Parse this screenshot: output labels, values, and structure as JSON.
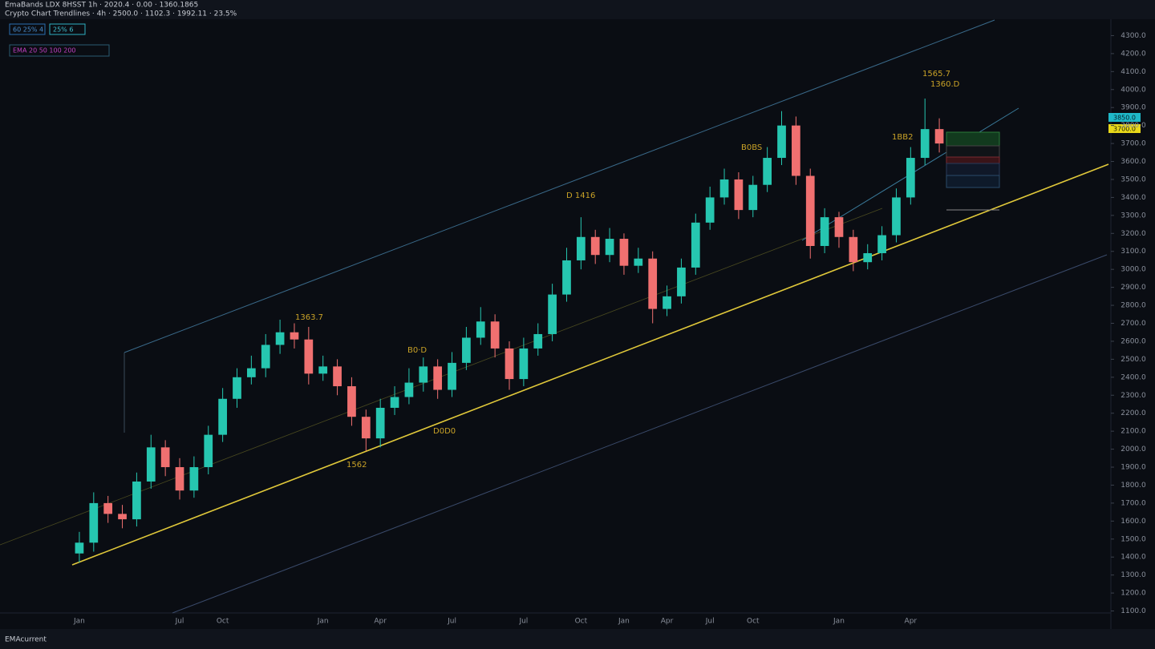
{
  "header": {
    "line1": "EmaBands LDX 8HSST 1h · 2020.4 · 0.00 · 1360.1865",
    "line2": "Crypto Chart Trendlines · 4h · 2500.0 · 1102.3 · 1992.11 · 23.5%",
    "indicator1": "60 25% 4",
    "indicator2": "25% 6",
    "indicator3": "EMA 20 50 100 200"
  },
  "footer": "EMAcurrent",
  "chart_data": {
    "type": "candlestick",
    "categories": [
      "Jan",
      null,
      null,
      null,
      null,
      null,
      null,
      "Jul",
      null,
      null,
      "Oct",
      null,
      null,
      null,
      null,
      null,
      null,
      "Jan",
      null,
      null,
      null,
      "Apr",
      null,
      null,
      null,
      null,
      "Jul",
      null,
      null,
      null,
      null,
      "Jul",
      null,
      null,
      null,
      "Oct",
      null,
      null,
      "Jan",
      null,
      null,
      "Apr",
      null,
      null,
      "Jul",
      null,
      null,
      "Oct",
      null,
      null,
      null,
      null,
      null,
      "Jan",
      null,
      null,
      null,
      null,
      "Apr",
      null,
      null
    ],
    "open": [
      1420,
      1480,
      1700,
      1640,
      1610,
      1820,
      2010,
      1900,
      1770,
      1900,
      2080,
      2280,
      2400,
      2450,
      2580,
      2650,
      2610,
      2420,
      2460,
      2350,
      2180,
      2060,
      2230,
      2290,
      2370,
      2460,
      2330,
      2480,
      2620,
      2710,
      2560,
      2390,
      2560,
      2640,
      2860,
      3050,
      3180,
      3080,
      3170,
      3020,
      3060,
      2780,
      2850,
      3010,
      3260,
      3400,
      3500,
      3330,
      3470,
      3620,
      3800,
      3520,
      3130,
      3290,
      3180,
      3040,
      3090,
      3190,
      3400,
      3620,
      3780
    ],
    "high": [
      1540,
      1760,
      1740,
      1690,
      1870,
      2080,
      2050,
      1950,
      1960,
      2130,
      2340,
      2450,
      2520,
      2640,
      2720,
      2700,
      2680,
      2520,
      2500,
      2400,
      2220,
      2280,
      2350,
      2450,
      2510,
      2500,
      2540,
      2680,
      2790,
      2750,
      2600,
      2620,
      2700,
      2920,
      3120,
      3290,
      3220,
      3230,
      3200,
      3120,
      3100,
      2910,
      3060,
      3310,
      3460,
      3560,
      3540,
      3520,
      3680,
      3880,
      3850,
      3560,
      3340,
      3320,
      3220,
      3140,
      3240,
      3450,
      3680,
      3950,
      3840
    ],
    "low": [
      1370,
      1430,
      1590,
      1560,
      1570,
      1780,
      1850,
      1720,
      1730,
      1860,
      2040,
      2230,
      2360,
      2400,
      2530,
      2560,
      2360,
      2380,
      2300,
      2130,
      1990,
      2010,
      2190,
      2250,
      2320,
      2280,
      2290,
      2440,
      2580,
      2510,
      2330,
      2350,
      2520,
      2600,
      2820,
      3000,
      3030,
      3040,
      2970,
      2980,
      2700,
      2740,
      2810,
      2970,
      3220,
      3360,
      3280,
      3290,
      3430,
      3580,
      3470,
      3060,
      3090,
      3120,
      2990,
      3000,
      3050,
      3150,
      3360,
      3580,
      3650
    ],
    "close": [
      1480,
      1700,
      1640,
      1610,
      1820,
      2010,
      1900,
      1770,
      1900,
      2080,
      2280,
      2400,
      2450,
      2580,
      2650,
      2610,
      2420,
      2460,
      2350,
      2180,
      2060,
      2230,
      2290,
      2370,
      2460,
      2330,
      2480,
      2620,
      2710,
      2560,
      2390,
      2560,
      2640,
      2860,
      3050,
      3180,
      3080,
      3170,
      3020,
      3060,
      2780,
      2850,
      3010,
      3260,
      3400,
      3500,
      3330,
      3470,
      3620,
      3800,
      3520,
      3130,
      3290,
      3180,
      3040,
      3090,
      3190,
      3400,
      3620,
      3780,
      3700
    ],
    "up_color": "#26c6b0",
    "down_color": "#f07070",
    "ylim": [
      1000,
      4400
    ],
    "yticks": [
      {
        "value": 1100,
        "label": "1100.0"
      },
      {
        "value": 1200,
        "label": "1200.0"
      },
      {
        "value": 1300,
        "label": "1300.0"
      },
      {
        "value": 1400,
        "label": "1400.0"
      },
      {
        "value": 1500,
        "label": "1500.0"
      },
      {
        "value": 1600,
        "label": "1600.0"
      },
      {
        "value": 1700,
        "label": "1700.0"
      },
      {
        "value": 1800,
        "label": "1800.0"
      },
      {
        "value": 1900,
        "label": "1900.0"
      },
      {
        "value": 2000,
        "label": "2000.0"
      },
      {
        "value": 2100,
        "label": "2100.0"
      },
      {
        "value": 2200,
        "label": "2200.0"
      },
      {
        "value": 2300,
        "label": "2300.0"
      },
      {
        "value": 2400,
        "label": "2400.0"
      },
      {
        "value": 2500,
        "label": "2500.0"
      },
      {
        "value": 2600,
        "label": "2600.0"
      },
      {
        "value": 2700,
        "label": "2700.0"
      },
      {
        "value": 2800,
        "label": "2800.0"
      },
      {
        "value": 2900,
        "label": "2900.0"
      },
      {
        "value": 3000,
        "label": "3000.0"
      },
      {
        "value": 3100,
        "label": "3100.0"
      },
      {
        "value": 3200,
        "label": "3200.0"
      },
      {
        "value": 3300,
        "label": "3300.0"
      },
      {
        "value": 3400,
        "label": "3400.0"
      },
      {
        "value": 3500,
        "label": "3500.0"
      },
      {
        "value": 3600,
        "label": "3600.0"
      },
      {
        "value": 3700,
        "label": "3700.0"
      },
      {
        "value": 3800,
        "label": "3800.0"
      },
      {
        "value": 3900,
        "label": "3900.0"
      },
      {
        "value": 4000,
        "label": "4000.0"
      },
      {
        "value": 4100,
        "label": "4100.0"
      },
      {
        "value": 4200,
        "label": "4200.0"
      },
      {
        "value": 4300,
        "label": "4300.0"
      }
    ],
    "price_tags": [
      "3850.0",
      "3700.0"
    ],
    "annotations": [
      "1363.7",
      "B0·D",
      "1562",
      "D0D0",
      "D 1416",
      "B0BS",
      "1BB2",
      "1565.7",
      "1360.D"
    ]
  }
}
